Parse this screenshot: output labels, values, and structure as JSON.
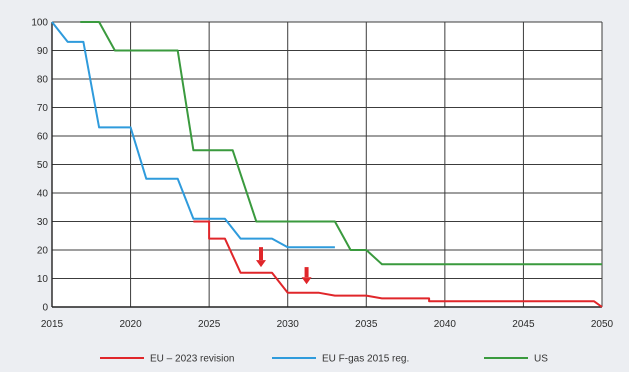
{
  "chart_data": {
    "type": "line",
    "xlim": [
      2015,
      2050
    ],
    "ylim": [
      0,
      100
    ],
    "xticks": [
      "2015",
      "2020",
      "2025",
      "2030",
      "2035",
      "2040",
      "2045",
      "2050"
    ],
    "yticks": [
      "0",
      "10",
      "20",
      "30",
      "40",
      "50",
      "60",
      "70",
      "80",
      "90",
      "100"
    ],
    "grid": true,
    "legend_position": "bottom",
    "series": [
      {
        "name": "EU – 2023 revision",
        "color": "#e0262a",
        "points": [
          [
            2024,
            30
          ],
          [
            2025,
            30
          ],
          [
            2025,
            24
          ],
          [
            2026,
            24
          ],
          [
            2027,
            12
          ],
          [
            2029,
            12
          ],
          [
            2030,
            5
          ],
          [
            2032,
            5
          ],
          [
            2033,
            4
          ],
          [
            2035,
            4
          ],
          [
            2036,
            3
          ],
          [
            2039,
            3
          ],
          [
            2039,
            2
          ],
          [
            2049.5,
            2
          ],
          [
            2050,
            0
          ]
        ]
      },
      {
        "name": "EU F-gas 2015 reg.",
        "color": "#2f9bdc",
        "points": [
          [
            2015,
            100
          ],
          [
            2016,
            93
          ],
          [
            2017,
            93
          ],
          [
            2018,
            63
          ],
          [
            2020,
            63
          ],
          [
            2021,
            45
          ],
          [
            2023,
            45
          ],
          [
            2024,
            31
          ],
          [
            2026,
            31
          ],
          [
            2027,
            24
          ],
          [
            2029,
            24
          ],
          [
            2030,
            21
          ],
          [
            2033,
            21
          ]
        ]
      },
      {
        "name": "US",
        "color": "#3a9a3e",
        "points": [
          [
            2016.8,
            100
          ],
          [
            2018,
            100
          ],
          [
            2019,
            90
          ],
          [
            2023,
            90
          ],
          [
            2024,
            55
          ],
          [
            2026.5,
            55
          ],
          [
            2028,
            30
          ],
          [
            2033,
            30
          ],
          [
            2034,
            20
          ],
          [
            2035,
            20
          ],
          [
            2036,
            15
          ],
          [
            2050,
            15
          ]
        ]
      }
    ],
    "annotations": [
      {
        "type": "arrow-down",
        "color": "#e0262a",
        "x": 2028.3,
        "y_top": 21,
        "y_bottom": 14
      },
      {
        "type": "arrow-down",
        "color": "#e0262a",
        "x": 2031.2,
        "y_top": 14,
        "y_bottom": 8
      }
    ]
  }
}
